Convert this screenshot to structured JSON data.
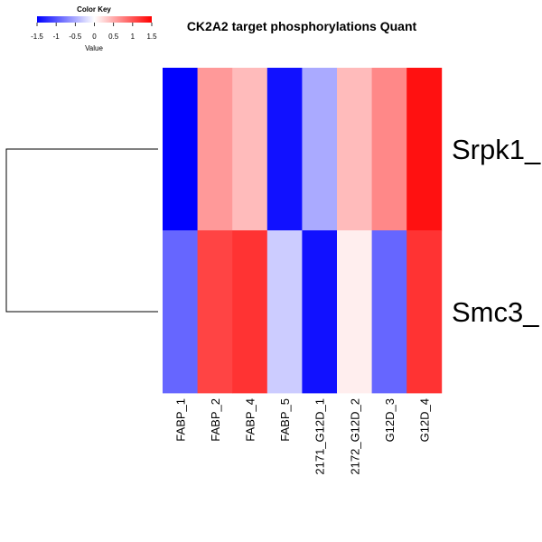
{
  "chart_data": {
    "type": "heatmap",
    "title": "CK2A2 target phosphorylations Quant",
    "rows": [
      "Srpk1_",
      "Smc3_"
    ],
    "columns": [
      "FABP_1",
      "FABP_2",
      "FABP_4",
      "FABP_5",
      "2171_G12D_1",
      "2172_G12D_2",
      "G12D_3",
      "G12D_4"
    ],
    "values": [
      [
        -1.5,
        0.6,
        0.4,
        -1.4,
        -0.5,
        0.4,
        0.7,
        1.4
      ],
      [
        -0.9,
        1.1,
        1.2,
        -0.3,
        -1.4,
        0.1,
        -0.9,
        1.2
      ]
    ],
    "color_scale": {
      "min": -1.5,
      "max": 1.5,
      "low": "#0000ff",
      "mid": "#ffffff",
      "high": "#ff0000"
    },
    "dendrogram": "rows",
    "color_key": {
      "title": "Color Key",
      "xlabel": "Value",
      "ticks": [
        "-1.5",
        "-1",
        "-0.5",
        "0",
        "0.5",
        "1",
        "1.5"
      ],
      "tick_values": [
        -1.5,
        -1,
        -0.5,
        0,
        0.5,
        1,
        1.5
      ]
    }
  }
}
